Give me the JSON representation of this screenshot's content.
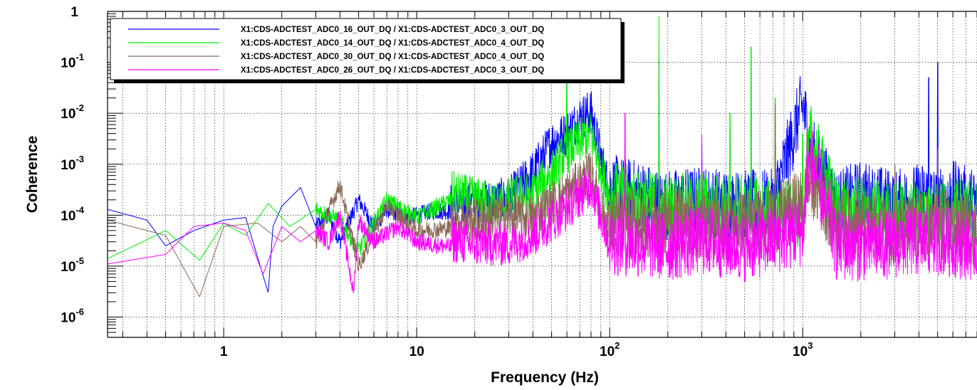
{
  "chart_data": {
    "type": "line",
    "title": "",
    "xlabel": "Frequency (Hz)",
    "ylabel": "Coherence",
    "xscale": "log",
    "yscale": "log",
    "xlim": [
      0.25,
      8000
    ],
    "ylim": [
      4e-07,
      1
    ],
    "grid": true,
    "legend": "top-left",
    "x_ticks": [
      {
        "label": "1",
        "value": 1
      },
      {
        "label": "10",
        "value": 10
      },
      {
        "label": "10",
        "exp": "2",
        "value": 100
      },
      {
        "label": "10",
        "exp": "3",
        "value": 1000
      }
    ],
    "y_ticks": [
      {
        "label": "1",
        "exp": "",
        "value": 1
      },
      {
        "label": "10",
        "exp": "-1",
        "value": 0.1
      },
      {
        "label": "10",
        "exp": "-2",
        "value": 0.01
      },
      {
        "label": "10",
        "exp": "-3",
        "value": 0.001
      },
      {
        "label": "10",
        "exp": "-4",
        "value": 0.0001
      },
      {
        "label": "10",
        "exp": "-5",
        "value": 1e-05
      },
      {
        "label": "10",
        "exp": "-6",
        "value": 1e-06
      }
    ],
    "series": [
      {
        "name": "X1:CDS-ADCTEST_ADC0_16_OUT_DQ / X1:CDS-ADCTEST_ADC0_3_OUT_DQ",
        "color": "#0000ff",
        "x": [
          0.25,
          0.4,
          0.5,
          0.7,
          1.0,
          1.3,
          1.7,
          1.8,
          2.0,
          2.5,
          3.0,
          3.5,
          4.0,
          5.0,
          6.0,
          7.0,
          9.0,
          12,
          20,
          30,
          40,
          50,
          60,
          70,
          80,
          90,
          100,
          150,
          180,
          200,
          300,
          400,
          500,
          700,
          1000,
          1100,
          1500,
          2000,
          3000,
          4500,
          5000,
          6000,
          8000
        ],
        "y": [
          0.00013,
          8e-05,
          2.5e-05,
          5e-05,
          8e-05,
          9e-05,
          3e-06,
          6e-05,
          0.00015,
          0.00035,
          6e-05,
          0.0001,
          3e-05,
          0.0002,
          6e-05,
          0.00013,
          9e-05,
          0.00012,
          0.00012,
          0.00015,
          0.0005,
          0.002,
          0.003,
          0.006,
          0.008,
          0.001,
          0.0002,
          0.00015,
          0.0001,
          0.0001,
          0.00012,
          0.0001,
          0.0001,
          0.0001,
          0.01,
          0.0012,
          0.0001,
          0.00015,
          0.0001,
          0.00015,
          0.0001,
          0.00015,
          0.0001
        ],
        "peaks": [
          [
            60,
            0.015
          ],
          [
            180,
            0.12
          ],
          [
            300,
            0.004
          ],
          [
            1000,
            0.01
          ],
          [
            4500,
            0.05
          ],
          [
            5000,
            0.1
          ]
        ]
      },
      {
        "name": "X1:CDS-ADCTEST_ADC0_14_OUT_DQ / X1:CDS-ADCTEST_ADC0_4_OUT_DQ",
        "color": "#00ee00",
        "x": [
          0.25,
          0.5,
          0.75,
          1.0,
          1.3,
          1.7,
          2.2,
          3.0,
          4.0,
          5.0,
          7.0,
          10,
          15,
          25,
          40,
          50,
          60,
          70,
          80,
          90,
          100,
          200,
          300,
          500,
          700,
          1000,
          1100,
          1500,
          2000,
          3000,
          5000,
          8000
        ],
        "y": [
          1.4e-05,
          5e-05,
          1.3e-05,
          7e-05,
          4e-05,
          0.00017,
          6e-05,
          0.00013,
          8e-05,
          2e-05,
          0.0002,
          9e-05,
          0.0002,
          0.00012,
          0.0002,
          0.0005,
          0.0013,
          0.002,
          0.003,
          0.0006,
          0.00015,
          8e-05,
          9e-05,
          8e-05,
          7e-05,
          6e-05,
          0.002,
          8e-05,
          7e-05,
          6e-05,
          7e-05,
          6e-05
        ],
        "peaks": [
          [
            60,
            0.08
          ],
          [
            180,
            0.8
          ],
          [
            420,
            0.01
          ],
          [
            540,
            0.2
          ],
          [
            720,
            0.02
          ],
          [
            1000,
            0.004
          ]
        ]
      },
      {
        "name": "X1:CDS-ADCTEST_ADC0_30_OUT_DQ / X1:CDS-ADCTEST_ADC0_4_OUT_DQ",
        "color": "#8b6855",
        "x": [
          0.25,
          0.5,
          0.75,
          1.0,
          1.5,
          2.0,
          2.5,
          3.0,
          4.0,
          5.0,
          7.0,
          10,
          20,
          40,
          60,
          80,
          90,
          100,
          200,
          300,
          500,
          700,
          1000,
          1100,
          1500,
          2000,
          3000,
          5000,
          8000
        ],
        "y": [
          8e-05,
          4e-05,
          2.5e-06,
          6e-05,
          7e-05,
          3e-05,
          6e-05,
          3e-05,
          0.0004,
          1e-05,
          0.00015,
          5e-05,
          6e-05,
          7e-05,
          0.0002,
          0.0005,
          0.0001,
          4e-05,
          5e-05,
          4e-05,
          4e-05,
          5e-05,
          0.0001,
          0.0003,
          4e-05,
          4e-05,
          3e-05,
          4e-05,
          3e-05
        ],
        "peaks": [
          [
            720,
            0.015
          ],
          [
            1050,
            0.005
          ],
          [
            3000,
            0.001
          ],
          [
            5000,
            0.002
          ]
        ]
      },
      {
        "name": "X1:CDS-ADCTEST_ADC0_26_OUT_DQ / X1:CDS-ADCTEST_ADC0_3_OUT_DQ",
        "color": "#ff00ff",
        "x": [
          0.25,
          0.5,
          0.7,
          1.0,
          1.3,
          1.6,
          2.0,
          2.5,
          3.0,
          3.5,
          4.0,
          4.7,
          5.0,
          6.0,
          8.0,
          10,
          20,
          30,
          40,
          60,
          80,
          100,
          200,
          300,
          500,
          700,
          1000,
          1100,
          1500,
          2000,
          5000,
          8000
        ],
        "y": [
          1.1e-05,
          1.7e-05,
          6e-05,
          7e-05,
          5e-05,
          7e-06,
          6e-05,
          3e-05,
          5e-05,
          3e-05,
          0.0001,
          3e-06,
          8e-05,
          3e-05,
          6e-05,
          3e-05,
          2e-05,
          2e-05,
          3e-05,
          0.0001,
          0.0003,
          2e-05,
          1.5e-05,
          2e-05,
          1.5e-05,
          2e-05,
          3e-05,
          0.001,
          1.5e-05,
          1.5e-05,
          2e-05,
          1.5e-05
        ],
        "peaks": [
          [
            120,
            0.01
          ],
          [
            300,
            0.004
          ],
          [
            1050,
            0.002
          ]
        ]
      }
    ]
  }
}
